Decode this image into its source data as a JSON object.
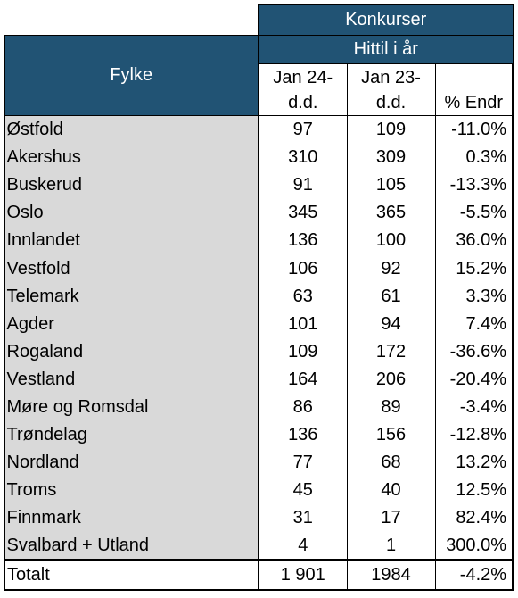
{
  "header": {
    "group_title": "Konkurser",
    "sub_title": "Hittil i år",
    "fylke_label": "Fylke",
    "col1_line1": "Jan 24-",
    "col1_line2": "d.d.",
    "col2_line1": "Jan 23-",
    "col2_line2": "d.d.",
    "col3_label": "% Endr"
  },
  "rows": [
    {
      "fylke": "Østfold",
      "jan24": "97",
      "jan23": "109",
      "endr": "-11.0%"
    },
    {
      "fylke": "Akershus",
      "jan24": "310",
      "jan23": "309",
      "endr": "0.3%"
    },
    {
      "fylke": "Buskerud",
      "jan24": "91",
      "jan23": "105",
      "endr": "-13.3%"
    },
    {
      "fylke": "Oslo",
      "jan24": "345",
      "jan23": "365",
      "endr": "-5.5%"
    },
    {
      "fylke": "Innlandet",
      "jan24": "136",
      "jan23": "100",
      "endr": "36.0%"
    },
    {
      "fylke": "Vestfold",
      "jan24": "106",
      "jan23": "92",
      "endr": "15.2%"
    },
    {
      "fylke": "Telemark",
      "jan24": "63",
      "jan23": "61",
      "endr": "3.3%"
    },
    {
      "fylke": "Agder",
      "jan24": "101",
      "jan23": "94",
      "endr": "7.4%"
    },
    {
      "fylke": "Rogaland",
      "jan24": "109",
      "jan23": "172",
      "endr": "-36.6%"
    },
    {
      "fylke": "Vestland",
      "jan24": "164",
      "jan23": "206",
      "endr": "-20.4%"
    },
    {
      "fylke": "Møre og Romsdal",
      "jan24": "86",
      "jan23": "89",
      "endr": "-3.4%"
    },
    {
      "fylke": "Trøndelag",
      "jan24": "136",
      "jan23": "156",
      "endr": "-12.8%"
    },
    {
      "fylke": "Nordland",
      "jan24": "77",
      "jan23": "68",
      "endr": "13.2%"
    },
    {
      "fylke": "Troms",
      "jan24": "45",
      "jan23": "40",
      "endr": "12.5%"
    },
    {
      "fylke": "Finnmark",
      "jan24": "31",
      "jan23": "17",
      "endr": "82.4%"
    },
    {
      "fylke": "Svalbard + Utland",
      "jan24": "4",
      "jan23": "1",
      "endr": "300.0%"
    }
  ],
  "total": {
    "fylke": "Totalt",
    "jan24": "1 901",
    "jan23": "1984",
    "endr": "-4.2%"
  },
  "colors": {
    "header_blue": "#215374",
    "name_column_gray": "#d9d9d9"
  }
}
